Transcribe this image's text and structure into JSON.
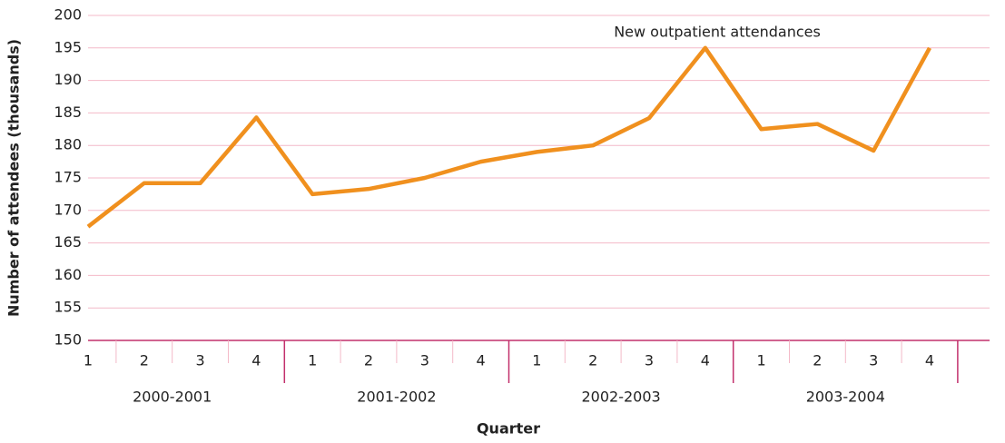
{
  "chart_data": {
    "type": "line",
    "annotation": "New outpatient attendances",
    "x_label": "Quarter",
    "y_label": "Number of attendees (thousands)",
    "categories": [
      "1",
      "2",
      "3",
      "4",
      "1",
      "2",
      "3",
      "4",
      "1",
      "2",
      "3",
      "4",
      "1",
      "2",
      "3",
      "4"
    ],
    "groups": [
      "2000-2001",
      "2001-2002",
      "2002-2003",
      "2003-2004"
    ],
    "series": [
      {
        "name": "New outpatient attendances",
        "color": "#f0901e",
        "values": [
          167.5,
          174.2,
          174.2,
          184.3,
          172.5,
          173.3,
          175,
          177.5,
          179,
          180,
          184.2,
          195,
          182.5,
          183.3,
          179.2,
          195
        ]
      }
    ],
    "ylim": [
      150,
      200
    ],
    "yticks": [
      150,
      155,
      160,
      165,
      170,
      175,
      180,
      185,
      190,
      195,
      200
    ],
    "grid": true
  }
}
